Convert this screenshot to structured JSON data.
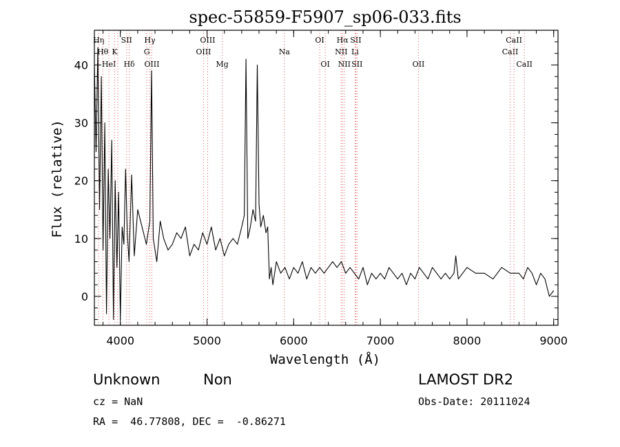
{
  "chart_data": {
    "type": "line",
    "title": "spec-55859-F5907_sp06-033.fits",
    "xlabel": "Wavelength (Å)",
    "ylabel": "Flux (relative)",
    "xlim": [
      3700,
      9050
    ],
    "ylim": [
      -5,
      46
    ],
    "xticks": [
      4000,
      5000,
      6000,
      7000,
      8000,
      9000
    ],
    "yticks": [
      0,
      10,
      20,
      30,
      40
    ],
    "grid": false,
    "series": [
      {
        "x": [
          3700,
          3720,
          3740,
          3760,
          3780,
          3800,
          3820,
          3840,
          3860,
          3880,
          3900,
          3920,
          3940,
          3960,
          3980,
          4000,
          4020,
          4040,
          4060,
          4080,
          4100,
          4130,
          4160,
          4200,
          4250,
          4300,
          4340,
          4360,
          4380,
          4420,
          4460,
          4500,
          4550,
          4600,
          4650,
          4700,
          4750,
          4800,
          4850,
          4900,
          4950,
          5000,
          5050,
          5100,
          5150,
          5200,
          5250,
          5300,
          5350,
          5400,
          5430,
          5450,
          5470,
          5500,
          5530,
          5560,
          5580,
          5600,
          5620,
          5650,
          5680,
          5700,
          5720,
          5740,
          5760,
          5780,
          5800,
          5850,
          5900,
          5950,
          6000,
          6050,
          6100,
          6150,
          6200,
          6250,
          6300,
          6350,
          6400,
          6450,
          6500,
          6550,
          6600,
          6650,
          6700,
          6750,
          6800,
          6850,
          6900,
          6950,
          7000,
          7050,
          7100,
          7150,
          7200,
          7250,
          7300,
          7350,
          7400,
          7450,
          7500,
          7550,
          7600,
          7650,
          7700,
          7750,
          7800,
          7850,
          7870,
          7900,
          7950,
          8000,
          8100,
          8200,
          8300,
          8400,
          8500,
          8600,
          8650,
          8700,
          8750,
          8800,
          8850,
          8900,
          8950,
          9000
        ],
        "y": [
          40,
          25,
          43,
          15,
          38,
          8,
          30,
          -3,
          22,
          10,
          27,
          -4,
          20,
          5,
          18,
          -4,
          12,
          9,
          22,
          11,
          6,
          21,
          7,
          15,
          12,
          9,
          13,
          39,
          10,
          6,
          13,
          10,
          8,
          9,
          11,
          10,
          12,
          7,
          9,
          8,
          11,
          9,
          12,
          8,
          10,
          7,
          9,
          10,
          9,
          12,
          14,
          41,
          10,
          12,
          15,
          13,
          40,
          16,
          12,
          14,
          11,
          12,
          3,
          5,
          2,
          4,
          6,
          4,
          5,
          3,
          5,
          4,
          6,
          3,
          5,
          4,
          5,
          4,
          5,
          6,
          5,
          6,
          4,
          5,
          4,
          3,
          5,
          2,
          4,
          3,
          4,
          3,
          5,
          4,
          3,
          4,
          2,
          4,
          3,
          5,
          4,
          3,
          5,
          4,
          3,
          4,
          3,
          4,
          7,
          3,
          4,
          5,
          4,
          4,
          3,
          5,
          4,
          4,
          3,
          5,
          4,
          2,
          4,
          3,
          0,
          1
        ]
      }
    ],
    "lines": [
      {
        "x": 3750,
        "label": "Hη",
        "row": 0
      },
      {
        "x": 3797,
        "label": "Hθ",
        "row": 1
      },
      {
        "x": 3868,
        "label": "HeI",
        "row": 2
      },
      {
        "x": 3934,
        "label": "K",
        "row": 1
      },
      {
        "x": 3970,
        "label": "",
        "row": -1
      },
      {
        "x": 4072,
        "label": "SII",
        "row": 0
      },
      {
        "x": 4102,
        "label": "Hδ",
        "row": 2
      },
      {
        "x": 4305,
        "label": "G",
        "row": 1
      },
      {
        "x": 4340,
        "label": "Hγ",
        "row": 0
      },
      {
        "x": 4363,
        "label": "OIII",
        "row": 2
      },
      {
        "x": 4959,
        "label": "OIII",
        "row": 1
      },
      {
        "x": 5007,
        "label": "OIII",
        "row": 0
      },
      {
        "x": 5175,
        "label": "Mg",
        "row": 2
      },
      {
        "x": 5893,
        "label": "Na",
        "row": 1
      },
      {
        "x": 6300,
        "label": "OI",
        "row": 0
      },
      {
        "x": 6364,
        "label": "OI",
        "row": 2
      },
      {
        "x": 6548,
        "label": "NII",
        "row": 1
      },
      {
        "x": 6563,
        "label": "Hα",
        "row": 0
      },
      {
        "x": 6584,
        "label": "NII",
        "row": 2
      },
      {
        "x": 6708,
        "label": "Li",
        "row": 1
      },
      {
        "x": 6717,
        "label": "SII",
        "row": 0
      },
      {
        "x": 6731,
        "label": "SII",
        "row": 2
      },
      {
        "x": 7440,
        "label": "OII",
        "row": 2
      },
      {
        "x": 8498,
        "label": "CaII",
        "row": 1
      },
      {
        "x": 8542,
        "label": "CaII",
        "row": 0
      },
      {
        "x": 8662,
        "label": "CaII",
        "row": 2
      }
    ],
    "colors": {
      "spectrum": "#000000",
      "lines": "#d9534f"
    }
  },
  "info": {
    "class_label": "Unknown",
    "subclass_label": "Non",
    "survey": "LAMOST DR2",
    "cz": "cz = NaN",
    "obs_date": "Obs-Date: 20111024",
    "coords": "RA =  46.77808, DEC =  -0.86271"
  }
}
